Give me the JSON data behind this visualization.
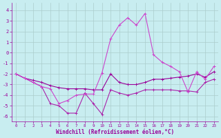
{
  "xlabel": "Windchill (Refroidissement éolien,°C)",
  "background_color": "#c8edf0",
  "grid_color": "#aacccc",
  "line_color1": "#990099",
  "line_color2": "#aa22aa",
  "line_color3": "#cc44cc",
  "xlim_min": -0.5,
  "xlim_max": 23.5,
  "ylim_min": -6.5,
  "ylim_max": 4.7,
  "yticks": [
    -6,
    -5,
    -4,
    -3,
    -2,
    -1,
    0,
    1,
    2,
    3,
    4
  ],
  "xticks": [
    0,
    1,
    2,
    3,
    4,
    5,
    6,
    7,
    8,
    9,
    10,
    11,
    12,
    13,
    14,
    15,
    16,
    17,
    18,
    19,
    20,
    21,
    22,
    23
  ],
  "line1_x": [
    0,
    1,
    2,
    3,
    4,
    5,
    6,
    7,
    8,
    9,
    10,
    11,
    12,
    13,
    14,
    15,
    16,
    17,
    18,
    19,
    20,
    21,
    22,
    23
  ],
  "line1_y": [
    -2.0,
    -2.4,
    -2.6,
    -2.8,
    -3.1,
    -3.3,
    -3.4,
    -3.4,
    -3.4,
    -3.5,
    -3.5,
    -2.0,
    -2.8,
    -3.0,
    -3.0,
    -2.8,
    -2.5,
    -2.5,
    -2.4,
    -2.3,
    -2.2,
    -2.0,
    -2.3,
    -1.8
  ],
  "line2_x": [
    0,
    1,
    2,
    3,
    4,
    5,
    6,
    7,
    8,
    9,
    10,
    11,
    12,
    13,
    14,
    15,
    16,
    17,
    18,
    19,
    20,
    21,
    22,
    23
  ],
  "line2_y": [
    -2.0,
    -2.4,
    -2.8,
    -3.2,
    -4.8,
    -5.0,
    -5.7,
    -5.7,
    -3.8,
    -4.8,
    -5.8,
    -3.5,
    -3.8,
    -4.0,
    -3.8,
    -3.5,
    -3.5,
    -3.5,
    -3.5,
    -3.6,
    -3.6,
    -3.7,
    -2.8,
    -2.5
  ],
  "line3_x": [
    0,
    1,
    2,
    3,
    4,
    5,
    6,
    7,
    8,
    9,
    10,
    11,
    12,
    13,
    14,
    15,
    16,
    17,
    18,
    19,
    20,
    21,
    22,
    23
  ],
  "line3_y": [
    -2.0,
    -2.4,
    -2.8,
    -3.2,
    -3.4,
    -4.8,
    -4.5,
    -4.0,
    -3.9,
    -3.9,
    -1.9,
    1.3,
    2.6,
    3.3,
    2.6,
    3.7,
    -0.2,
    -0.9,
    -1.3,
    -1.8,
    -3.7,
    -1.8,
    -2.5,
    -1.3
  ]
}
